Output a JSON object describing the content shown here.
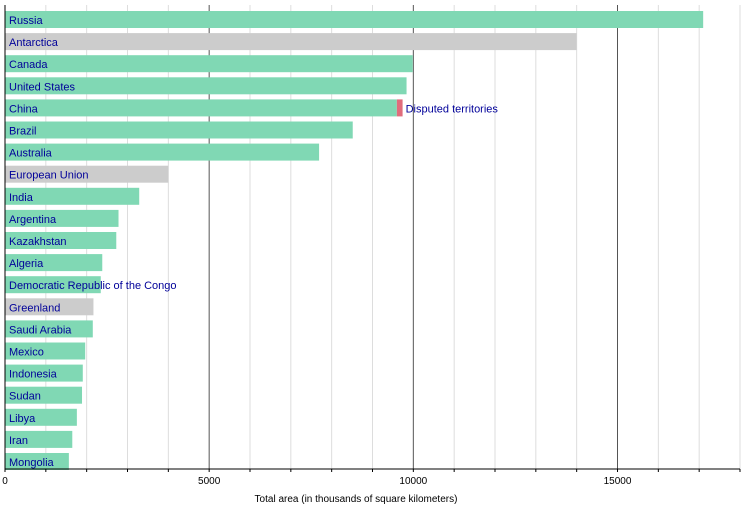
{
  "chart_data": {
    "type": "bar",
    "orientation": "horizontal",
    "title": "",
    "xlabel": "Total area (in thousands of square kilometers)",
    "ylabel": "",
    "xlim": [
      0,
      18000
    ],
    "x_ticks": [
      0,
      5000,
      10000,
      15000
    ],
    "grid": true,
    "categories": [
      "Russia",
      "Antarctica",
      "Canada",
      "United States",
      "China",
      "Brazil",
      "Australia",
      "European Union",
      "India",
      "Argentina",
      "Kazakhstan",
      "Algeria",
      "Democratic Republic of the Congo",
      "Greenland",
      "Saudi Arabia",
      "Mexico",
      "Indonesia",
      "Sudan",
      "Libya",
      "Iran",
      "Mongolia"
    ],
    "values": [
      17098,
      14000,
      9985,
      9834,
      9597,
      8516,
      7692,
      4000,
      3287,
      2780,
      2725,
      2382,
      2345,
      2166,
      2150,
      1964,
      1905,
      1886,
      1760,
      1648,
      1564
    ],
    "bar_kind": [
      "country",
      "other",
      "country",
      "country",
      "country",
      "country",
      "country",
      "other",
      "country",
      "country",
      "country",
      "country",
      "country",
      "other",
      "country",
      "country",
      "country",
      "country",
      "country",
      "country",
      "country"
    ],
    "colors": {
      "country": "#80d8b4",
      "other": "#cccccc",
      "disputed": "#e06c7c"
    },
    "annotation": {
      "label": "Disputed territories",
      "category": "China",
      "start": 9597,
      "value": 140
    }
  }
}
